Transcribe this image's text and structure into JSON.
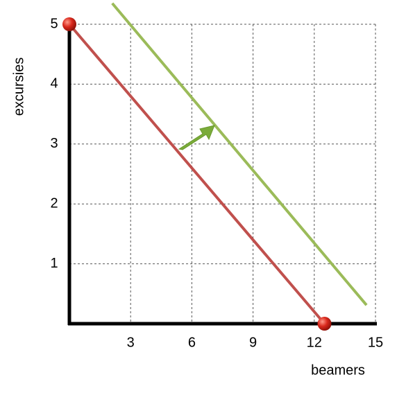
{
  "chart_data": {
    "type": "line",
    "xlabel": "beamers",
    "ylabel": "excursies",
    "xlim": [
      0,
      15
    ],
    "xticks": [
      3,
      6,
      9,
      12,
      15
    ],
    "ylim": [
      0,
      5
    ],
    "yticks": [
      1,
      2,
      3,
      4,
      5
    ],
    "grid": true,
    "series": [
      {
        "color": "#c0504d",
        "x": [
          0,
          12.5
        ],
        "values": [
          5,
          0
        ],
        "markers": true
      },
      {
        "color": "#9bbb59",
        "x": [
          2.1,
          14.56
        ],
        "values": [
          5.35,
          0.31
        ],
        "markers": false
      }
    ]
  }
}
